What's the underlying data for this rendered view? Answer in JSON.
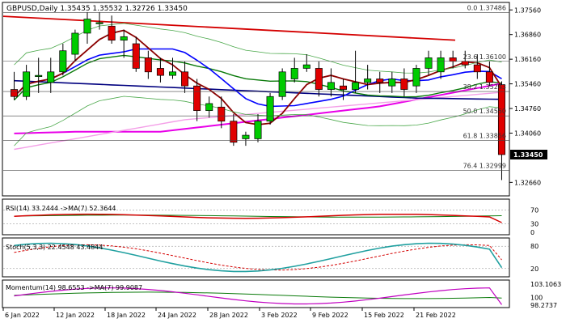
{
  "chart_data": {
    "type": "candlestick",
    "symbol_timeframe": "GBPUSD,Daily",
    "ohlc_header": [
      "1.35435",
      "1.35532",
      "1.32726",
      "1.33450"
    ],
    "y_range": [
      1.323,
      1.3775
    ],
    "y_ticks": [
      "1.37560",
      "1.36860",
      "1.36160",
      "1.35460",
      "1.34760",
      "1.34060",
      "1.33450",
      "1.32660"
    ],
    "last_price_label": "1.33450",
    "last_price": 1.3345,
    "x_labels": [
      "6 Jan 2022",
      "12 Jan 2022",
      "18 Jan 2022",
      "24 Jan 2022",
      "28 Jan 2022",
      "3 Feb 2022",
      "9 Feb 2022",
      "15 Feb 2022",
      "21 Feb 2022"
    ],
    "fib_levels": [
      {
        "label": "0.0 1.37486",
        "value": 1.37486
      },
      {
        "label": "23.6 1.36100",
        "value": 1.361
      },
      {
        "label": "38.2 1.35243",
        "value": 1.35243
      },
      {
        "label": "50.0 1.34550",
        "value": 1.3455
      },
      {
        "label": "61.8 1.33856",
        "value": 1.33856
      },
      {
        "label": "76.4 1.32999",
        "value": 1.32999
      }
    ],
    "candles": [
      [
        1.353,
        1.358,
        1.35,
        1.351
      ],
      [
        1.351,
        1.36,
        1.35,
        1.358
      ],
      [
        1.357,
        1.362,
        1.352,
        1.357
      ],
      [
        1.355,
        1.362,
        1.352,
        1.358
      ],
      [
        1.358,
        1.366,
        1.357,
        1.364
      ],
      [
        1.363,
        1.37,
        1.361,
        1.369
      ],
      [
        1.369,
        1.375,
        1.366,
        1.373
      ],
      [
        1.372,
        1.375,
        1.37,
        1.372
      ],
      [
        1.371,
        1.374,
        1.366,
        1.367
      ],
      [
        1.367,
        1.37,
        1.362,
        1.368
      ],
      [
        1.366,
        1.368,
        1.358,
        1.359
      ],
      [
        1.362,
        1.364,
        1.356,
        1.358
      ],
      [
        1.359,
        1.362,
        1.355,
        1.357
      ],
      [
        1.357,
        1.362,
        1.356,
        1.358
      ],
      [
        1.358,
        1.361,
        1.352,
        1.354
      ],
      [
        1.354,
        1.356,
        1.344,
        1.347
      ],
      [
        1.347,
        1.351,
        1.345,
        1.349
      ],
      [
        1.348,
        1.351,
        1.342,
        1.344
      ],
      [
        1.344,
        1.346,
        1.337,
        1.338
      ],
      [
        1.339,
        1.341,
        1.337,
        1.34
      ],
      [
        1.339,
        1.346,
        1.338,
        1.344
      ],
      [
        1.344,
        1.352,
        1.343,
        1.351
      ],
      [
        1.351,
        1.359,
        1.35,
        1.358
      ],
      [
        1.356,
        1.362,
        1.355,
        1.359
      ],
      [
        1.359,
        1.363,
        1.358,
        1.36
      ],
      [
        1.359,
        1.361,
        1.351,
        1.353
      ],
      [
        1.353,
        1.359,
        1.351,
        1.355
      ],
      [
        1.354,
        1.356,
        1.35,
        1.353
      ],
      [
        1.353,
        1.364,
        1.352,
        1.355
      ],
      [
        1.355,
        1.36,
        1.353,
        1.356
      ],
      [
        1.356,
        1.358,
        1.352,
        1.355
      ],
      [
        1.354,
        1.358,
        1.352,
        1.356
      ],
      [
        1.356,
        1.359,
        1.351,
        1.353
      ],
      [
        1.354,
        1.36,
        1.352,
        1.359
      ],
      [
        1.359,
        1.364,
        1.357,
        1.362
      ],
      [
        1.358,
        1.364,
        1.356,
        1.362
      ],
      [
        1.362,
        1.364,
        1.359,
        1.361
      ],
      [
        1.361,
        1.364,
        1.359,
        1.36
      ],
      [
        1.36,
        1.363,
        1.356,
        1.358
      ],
      [
        1.358,
        1.361,
        1.354,
        1.355
      ],
      [
        1.35435,
        1.35532,
        1.32726,
        1.3345
      ]
    ],
    "indicators": {
      "rsi": {
        "label": "RSI(14) 33.2444 ->MA(7) 52.3644",
        "ticks": [
          "70",
          "30",
          "0"
        ],
        "levels": [
          70,
          30
        ]
      },
      "stoch": {
        "label": "Stoch(5,3,3) 22.4548 43.4844",
        "ticks": [
          "80",
          "20"
        ],
        "levels": [
          80,
          20
        ]
      },
      "momentum": {
        "label": "Momentum(14) 98.6553 ->MA(7) 99.9087",
        "ticks": [
          "103.1063",
          "100",
          "98.2737"
        ]
      }
    }
  }
}
